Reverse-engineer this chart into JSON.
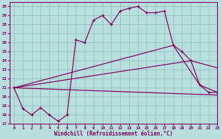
{
  "xlabel": "Windchill (Refroidissement éolien,°C)",
  "xlim": [
    -0.5,
    23
  ],
  "ylim": [
    17,
    30.5
  ],
  "xticks": [
    0,
    1,
    2,
    3,
    4,
    5,
    6,
    7,
    8,
    9,
    10,
    11,
    12,
    13,
    14,
    15,
    16,
    17,
    18,
    19,
    20,
    21,
    22,
    23
  ],
  "yticks": [
    17,
    18,
    19,
    20,
    21,
    22,
    23,
    24,
    25,
    26,
    27,
    28,
    29,
    30
  ],
  "bg_color": "#b8dede",
  "line_color": "#800060",
  "grid_color": "#90c0c0",
  "main_line": {
    "x": [
      0,
      1,
      2,
      3,
      4,
      5,
      6,
      7,
      8,
      9,
      10,
      11,
      12,
      13,
      14,
      15,
      16,
      17,
      18,
      19,
      20,
      21,
      22,
      23
    ],
    "y": [
      21,
      18.7,
      18.0,
      18.8,
      18.0,
      17.3,
      18.0,
      26.3,
      26.0,
      28.5,
      29.0,
      28.0,
      29.5,
      29.8,
      30.0,
      29.3,
      29.3,
      29.5,
      25.7,
      25.0,
      24.0,
      21.3,
      20.5,
      20.5
    ]
  },
  "line_upper": {
    "x": [
      0,
      18,
      21,
      23
    ],
    "y": [
      21,
      25.7,
      21.3,
      20.5
    ]
  },
  "line_mid": {
    "x": [
      0,
      20,
      23
    ],
    "y": [
      21,
      24.0,
      23.2
    ]
  },
  "line_lower": {
    "x": [
      0,
      23
    ],
    "y": [
      21,
      20.2
    ]
  }
}
